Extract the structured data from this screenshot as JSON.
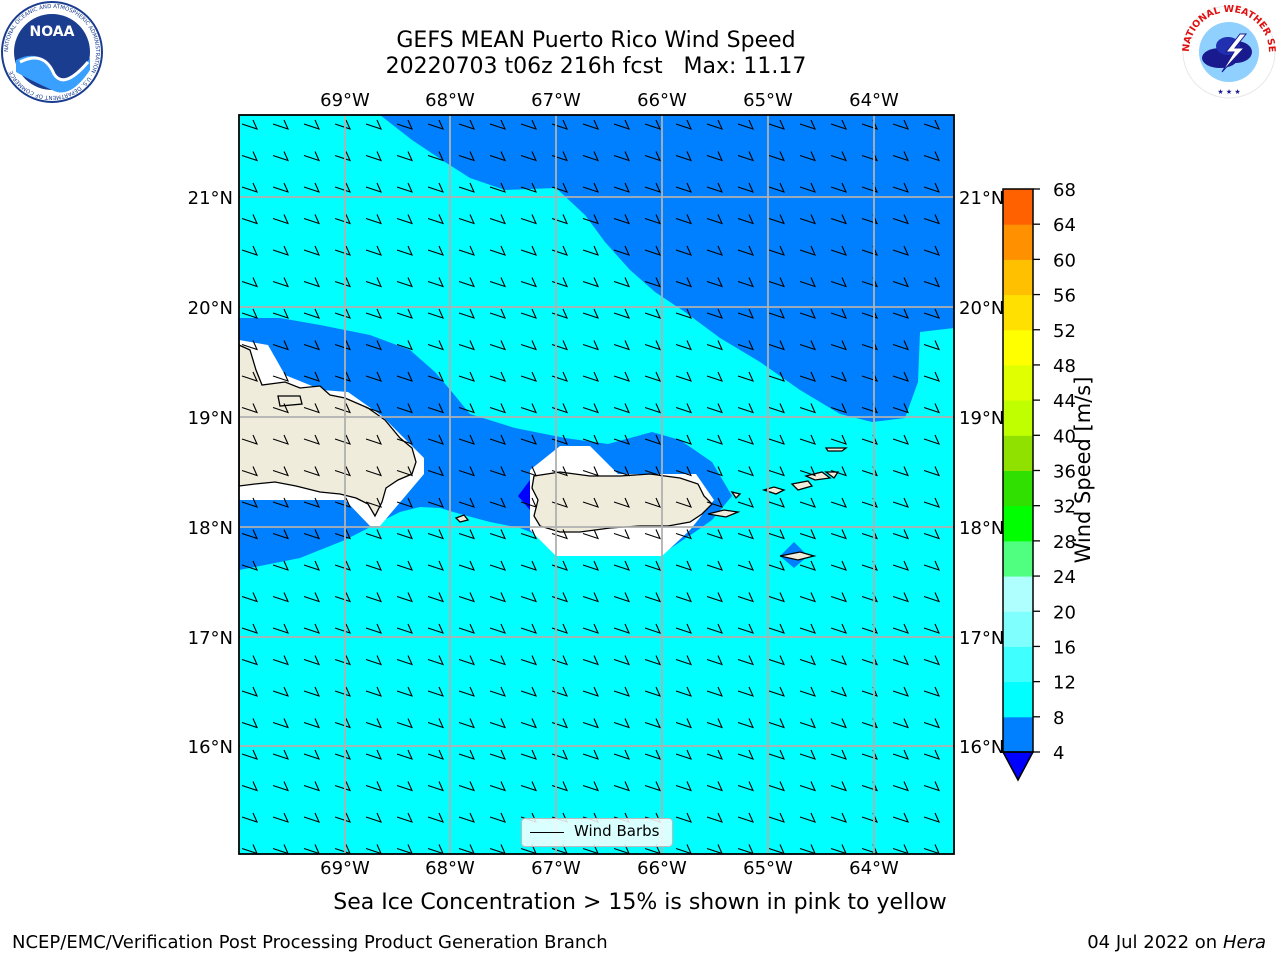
{
  "title": {
    "line1": "GEFS MEAN Puerto Rico Wind Speed",
    "line2": "20220703 t06z 216h fcst   Max: 11.17"
  },
  "logos": {
    "left": "noaa-logo",
    "left_text": "NOAA",
    "left_ring": "NATIONAL OCEANIC AND ATMOSPHERIC ADMINISTRATION · U.S. DEPARTMENT OF COMMERCE",
    "right": "nws-logo",
    "right_ring": "NATIONAL WEATHER SERVICE"
  },
  "map": {
    "lon_labels": [
      "69°W",
      "68°W",
      "67°W",
      "66°W",
      "65°W",
      "64°W"
    ],
    "lat_labels": [
      "21°N",
      "20°N",
      "19°N",
      "18°N",
      "17°N",
      "16°N"
    ],
    "land_color": "#efecdc",
    "sea_light": "#00ffff",
    "sea_dark": "#0080ff",
    "sea_min": "#0000ff",
    "grid_color": "#b0b0b0",
    "barbs_legend": "Wind Barbs"
  },
  "colorbar": {
    "label": "Wind Speed [m/s]",
    "ticks": [
      "68",
      "64",
      "60",
      "56",
      "52",
      "48",
      "44",
      "40",
      "36",
      "32",
      "28",
      "24",
      "20",
      "16",
      "12",
      "8",
      "4"
    ],
    "colors_bottom_to_top": [
      "#0080ff",
      "#00ffff",
      "#00ffff",
      "#40ffff",
      "#80ffff",
      "#b0ffff",
      "#50ff80",
      "#00ff00",
      "#30e000",
      "#90e000",
      "#c0ff00",
      "#e0ff00",
      "#ffff00",
      "#ffe000",
      "#ffc000",
      "#ff9000",
      "#ff6000",
      "#ff3000",
      "#ff0000"
    ],
    "extend_color": "#0000ff"
  },
  "caption": "Sea Ice Concentration > 15% is shown in pink to yellow",
  "footer": {
    "left": "NCEP/EMC/Verification Post Processing Product Generation Branch",
    "right_prefix": "04 Jul 2022 on ",
    "right_machine": "Hera"
  }
}
